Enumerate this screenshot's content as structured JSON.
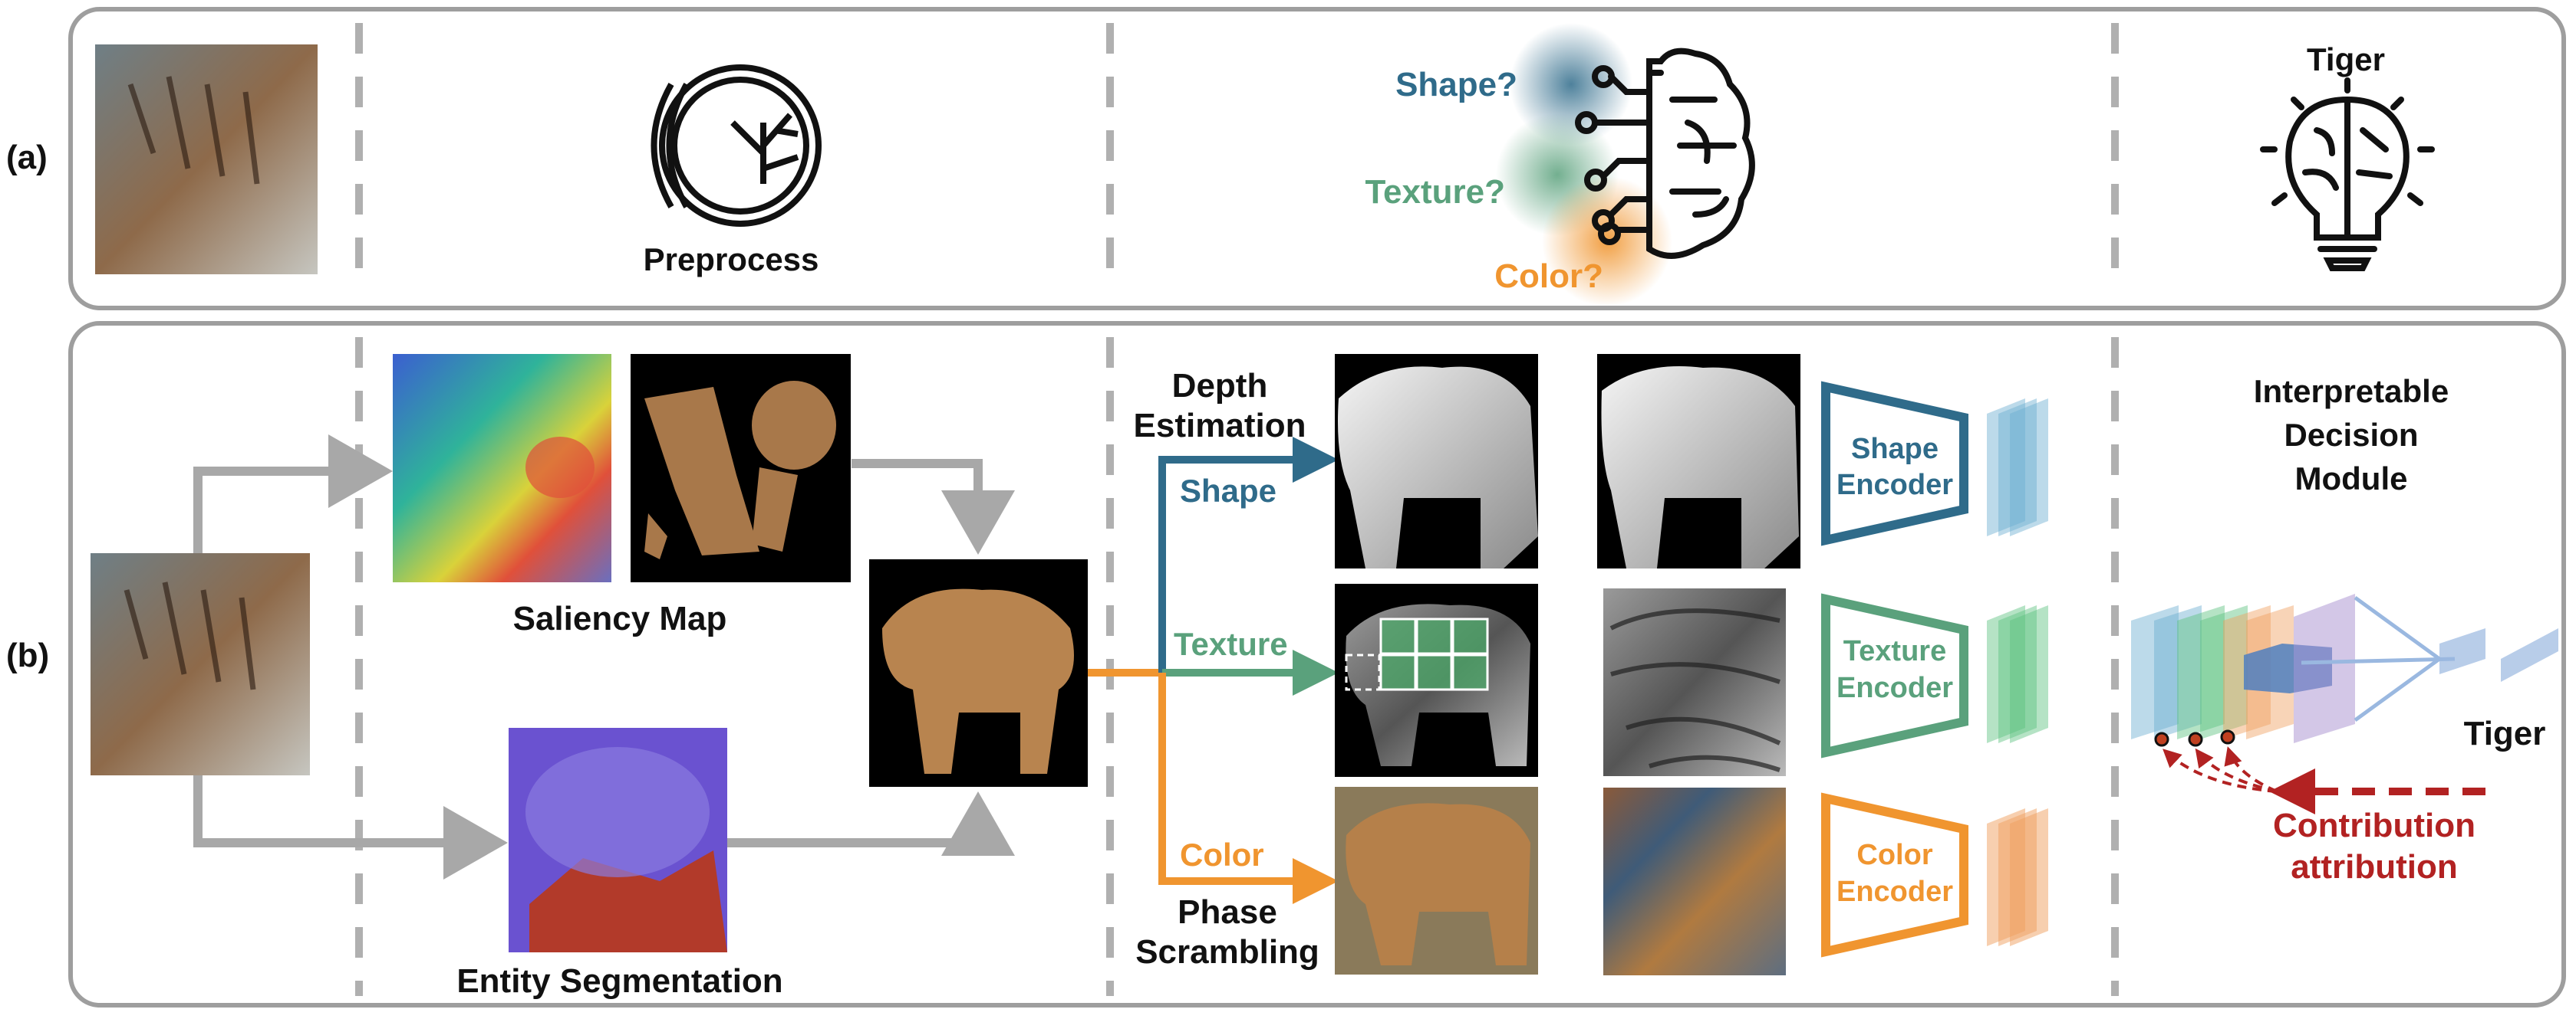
{
  "panels": {
    "a": {
      "label": "(a)"
    },
    "b": {
      "label": "(b)"
    }
  },
  "row_a": {
    "preprocess_label": "Preprocess",
    "questions": {
      "shape": "Shape?",
      "texture": "Texture?",
      "color": "Color?"
    },
    "result_label": "Tiger"
  },
  "row_b": {
    "saliency_label": "Saliency Map",
    "segmentation_label": "Entity Segmentation",
    "depth_label_line1": "Depth",
    "depth_label_line2": "Estimation",
    "phase_label_line1": "Phase",
    "phase_label_line2": "Scrambling",
    "branches": {
      "shape": "Shape",
      "texture": "Texture",
      "color": "Color"
    },
    "encoders": {
      "shape_line1": "Shape",
      "shape_line2": "Encoder",
      "texture_line1": "Texture",
      "texture_line2": "Encoder",
      "color_line1": "Color",
      "color_line2": "Encoder"
    },
    "decision_title_line1": "Interpretable",
    "decision_title_line2": "Decision",
    "decision_title_line3": "Module",
    "output_label": "Tiger",
    "attribution_line1": "Contribution",
    "attribution_line2": "attribution"
  },
  "colors": {
    "shape": "#2f6b8a",
    "texture": "#5aa17c",
    "color": "#f0952f",
    "attribution": "#b22222",
    "frame": "#9e9e9e",
    "arrow": "#a8a8a8"
  },
  "icons": [
    "eye-icon",
    "brain-icon",
    "lightbulb-icon"
  ]
}
